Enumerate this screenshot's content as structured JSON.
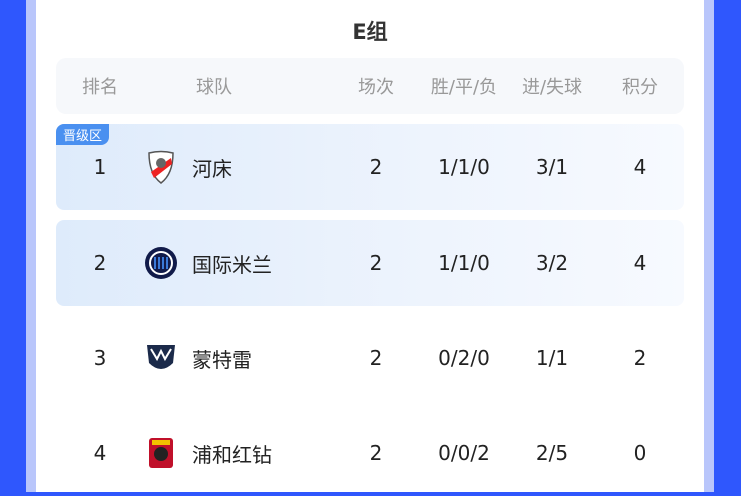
{
  "group_title": "E组",
  "columns": [
    "排名",
    "球队",
    "场次",
    "胜/平/负",
    "进/失球",
    "积分"
  ],
  "qualify_badge": "晋级区",
  "rows": [
    {
      "rank": "1",
      "team": "河床",
      "logo": "river-plate-crest-icon",
      "played": "2",
      "wdl": "1/1/0",
      "goals": "3/1",
      "points": "4",
      "highlight": true
    },
    {
      "rank": "2",
      "team": "国际米兰",
      "logo": "inter-milan-crest-icon",
      "played": "2",
      "wdl": "1/1/0",
      "goals": "3/2",
      "points": "4",
      "highlight": true
    },
    {
      "rank": "3",
      "team": "蒙特雷",
      "logo": "monterrey-crest-icon",
      "played": "2",
      "wdl": "0/2/0",
      "goals": "1/1",
      "points": "2",
      "highlight": false
    },
    {
      "rank": "4",
      "team": "浦和红钻",
      "logo": "urawa-reds-crest-icon",
      "played": "2",
      "wdl": "0/0/2",
      "goals": "2/5",
      "points": "0",
      "highlight": false
    }
  ],
  "colors": {
    "background": "#2f57fd",
    "highlight_row": "#deebfb",
    "badge": "#4a90f0"
  }
}
